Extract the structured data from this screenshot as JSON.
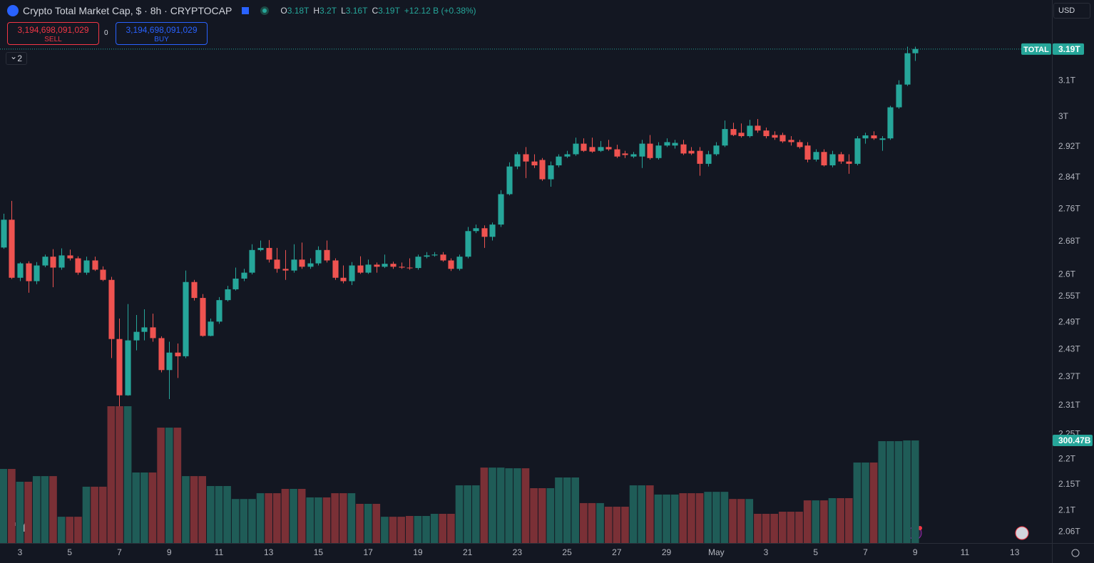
{
  "toolbar": {
    "symbol": "Crypto Total Market Cap, $ · 8h · CRYPTOCAP",
    "ohlc": [
      [
        "O",
        "3.18T"
      ],
      [
        "H",
        "3.2T"
      ],
      [
        "L",
        "3.16T"
      ],
      [
        "C",
        "3.19T"
      ]
    ],
    "change": "+12.12 B (+0.38%)",
    "sell_price": "3,194,698,091,029",
    "sell": "SELL",
    "spread": "0",
    "buy_price": "3,194,698,091,029",
    "buy": "BUY",
    "indicators": "2",
    "currency": "USD"
  },
  "chart_data": {
    "type": "candlestick",
    "log_scale": true,
    "grid": false,
    "colors": {
      "up": "#26a69a",
      "down": "#ef5350"
    },
    "ylim": [
      2.039,
      3.335
    ],
    "yticks": [
      {
        "value": 3.1,
        "label": "3.1T"
      },
      {
        "value": 3,
        "label": "3T"
      },
      {
        "value": 2.92,
        "label": "2.92T"
      },
      {
        "value": 2.84,
        "label": "2.84T"
      },
      {
        "value": 2.76,
        "label": "2.76T"
      },
      {
        "value": 2.68,
        "label": "2.68T"
      },
      {
        "value": 2.6,
        "label": "2.6T"
      },
      {
        "value": 2.55,
        "label": "2.55T"
      },
      {
        "value": 2.49,
        "label": "2.49T"
      },
      {
        "value": 2.43,
        "label": "2.43T"
      },
      {
        "value": 2.37,
        "label": "2.37T"
      },
      {
        "value": 2.31,
        "label": "2.31T"
      },
      {
        "value": 2.25,
        "label": "2.25T"
      },
      {
        "value": 2.2,
        "label": "2.2T"
      },
      {
        "value": 2.15,
        "label": "2.15T"
      },
      {
        "value": 2.1,
        "label": "2.1T"
      },
      {
        "value": 2.06,
        "label": "2.06T"
      }
    ],
    "xlim": [
      -0.41,
      126.5
    ],
    "xticks": [
      {
        "value": 2,
        "label": "3"
      },
      {
        "value": 8,
        "label": "5"
      },
      {
        "value": 14,
        "label": "7"
      },
      {
        "value": 20,
        "label": "9"
      },
      {
        "value": 26,
        "label": "11"
      },
      {
        "value": 32,
        "label": "13"
      },
      {
        "value": 38,
        "label": "15"
      },
      {
        "value": 44,
        "label": "17"
      },
      {
        "value": 50,
        "label": "19"
      },
      {
        "value": 56,
        "label": "21"
      },
      {
        "value": 62,
        "label": "23"
      },
      {
        "value": 68,
        "label": "25"
      },
      {
        "value": 74,
        "label": "27"
      },
      {
        "value": 80,
        "label": "29"
      },
      {
        "value": 86,
        "label": "May"
      },
      {
        "value": 92,
        "label": "3"
      },
      {
        "value": 98,
        "label": "5"
      },
      {
        "value": 104,
        "label": "7"
      },
      {
        "value": 110,
        "label": "9"
      },
      {
        "value": 116,
        "label": "11"
      },
      {
        "value": 122,
        "label": "13"
      }
    ],
    "open": [
      2.665,
      2.733,
      2.593,
      2.627,
      2.585,
      2.622,
      2.643,
      2.617,
      2.646,
      2.639,
      2.605,
      2.634,
      2.612,
      2.588,
      2.453,
      2.331,
      2.45,
      2.469,
      2.479,
      2.455,
      2.385,
      2.423,
      2.415,
      2.583,
      2.546,
      2.46,
      2.492,
      2.541,
      2.566,
      2.591,
      2.605,
      2.659,
      2.664,
      2.636,
      2.614,
      2.61,
      2.636,
      2.619,
      2.627,
      2.659,
      2.634,
      2.593,
      2.585,
      2.622,
      2.605,
      2.624,
      2.619,
      2.626,
      2.619,
      2.617,
      2.616,
      2.643,
      2.646,
      2.648,
      2.634,
      2.614,
      2.643,
      2.705,
      2.712,
      2.691,
      2.721,
      2.797,
      2.868,
      2.9,
      2.881,
      2.885,
      2.835,
      2.871,
      2.894,
      2.9,
      2.928,
      2.919,
      2.909,
      2.919,
      2.913,
      2.902,
      2.894,
      2.894,
      2.928,
      2.89,
      2.923,
      2.923,
      2.926,
      2.909,
      2.909,
      2.875,
      2.9,
      2.923,
      2.967,
      2.957,
      2.948,
      2.976,
      2.963,
      2.951,
      2.951,
      2.938,
      2.932,
      2.923,
      2.886,
      2.906,
      2.871,
      2.9,
      2.881,
      2.875,
      2.942,
      2.95,
      2.938,
      2.942,
      3.026,
      3.089,
      3.178
    ],
    "high": [
      2.748,
      2.78,
      2.63,
      2.632,
      2.63,
      2.648,
      2.661,
      2.663,
      2.66,
      2.644,
      2.643,
      2.643,
      2.62,
      2.595,
      2.499,
      2.532,
      2.507,
      2.52,
      2.51,
      2.459,
      2.447,
      2.443,
      2.61,
      2.588,
      2.555,
      2.499,
      2.548,
      2.574,
      2.617,
      2.614,
      2.673,
      2.682,
      2.683,
      2.664,
      2.659,
      2.673,
      2.677,
      2.639,
      2.668,
      2.682,
      2.639,
      2.622,
      2.63,
      2.644,
      2.636,
      2.629,
      2.648,
      2.631,
      2.629,
      2.639,
      2.648,
      2.654,
      2.654,
      2.654,
      2.639,
      2.648,
      2.715,
      2.721,
      2.719,
      2.726,
      2.807,
      2.879,
      2.906,
      2.919,
      2.9,
      2.89,
      2.881,
      2.9,
      2.909,
      2.944,
      2.942,
      2.944,
      2.935,
      2.938,
      2.925,
      2.909,
      2.906,
      2.938,
      2.951,
      2.932,
      2.942,
      2.938,
      2.938,
      2.919,
      2.919,
      2.909,
      2.932,
      2.99,
      2.984,
      2.982,
      2.992,
      2.994,
      2.971,
      2.961,
      2.957,
      2.948,
      2.938,
      2.932,
      2.913,
      2.913,
      2.909,
      2.906,
      2.9,
      2.948,
      2.957,
      2.961,
      2.948,
      3.03,
      3.101,
      3.197,
      3.197
    ],
    "low": [
      2.662,
      2.59,
      2.585,
      2.558,
      2.578,
      2.618,
      2.571,
      2.612,
      2.634,
      2.6,
      2.6,
      2.609,
      2.585,
      2.411,
      2.308,
      2.33,
      2.428,
      2.45,
      2.447,
      2.38,
      2.323,
      2.368,
      2.411,
      2.54,
      2.458,
      2.459,
      2.487,
      2.538,
      2.563,
      2.585,
      2.601,
      2.656,
      2.629,
      2.605,
      2.588,
      2.605,
      2.614,
      2.614,
      2.622,
      2.629,
      2.588,
      2.58,
      2.576,
      2.602,
      2.602,
      2.605,
      2.616,
      2.614,
      2.614,
      2.612,
      2.612,
      2.639,
      2.643,
      2.631,
      2.609,
      2.61,
      2.639,
      2.7,
      2.664,
      2.682,
      2.715,
      2.794,
      2.861,
      2.838,
      2.864,
      2.831,
      2.816,
      2.866,
      2.89,
      2.896,
      2.906,
      2.904,
      2.906,
      2.909,
      2.89,
      2.89,
      2.89,
      2.864,
      2.886,
      2.886,
      2.919,
      2.915,
      2.898,
      2.898,
      2.844,
      2.868,
      2.896,
      2.919,
      2.948,
      2.944,
      2.944,
      2.957,
      2.942,
      2.938,
      2.93,
      2.923,
      2.915,
      2.879,
      2.881,
      2.868,
      2.866,
      2.875,
      2.849,
      2.871,
      2.928,
      2.938,
      2.909,
      2.938,
      3.022,
      3.085,
      3.156
    ],
    "close": [
      2.733,
      2.593,
      2.627,
      2.585,
      2.622,
      2.643,
      2.617,
      2.646,
      2.639,
      2.605,
      2.634,
      2.612,
      2.588,
      2.453,
      2.331,
      2.45,
      2.469,
      2.479,
      2.455,
      2.385,
      2.423,
      2.415,
      2.583,
      2.546,
      2.46,
      2.492,
      2.541,
      2.566,
      2.591,
      2.605,
      2.659,
      2.664,
      2.636,
      2.614,
      2.61,
      2.636,
      2.619,
      2.627,
      2.659,
      2.634,
      2.593,
      2.585,
      2.622,
      2.605,
      2.624,
      2.619,
      2.626,
      2.619,
      2.617,
      2.616,
      2.643,
      2.646,
      2.648,
      2.634,
      2.614,
      2.643,
      2.705,
      2.712,
      2.691,
      2.721,
      2.797,
      2.868,
      2.9,
      2.881,
      2.871,
      2.835,
      2.871,
      2.894,
      2.9,
      2.928,
      2.909,
      2.907,
      2.919,
      2.913,
      2.894,
      2.898,
      2.9,
      2.928,
      2.89,
      2.923,
      2.932,
      2.93,
      2.902,
      2.902,
      2.875,
      2.9,
      2.923,
      2.967,
      2.951,
      2.948,
      2.976,
      2.963,
      2.948,
      2.944,
      2.934,
      2.932,
      2.919,
      2.886,
      2.906,
      2.871,
      2.9,
      2.881,
      2.875,
      2.942,
      2.95,
      2.942,
      2.942,
      3.026,
      3.089,
      3.178,
      3.19
    ],
    "last_price": {
      "name": "TOTAL",
      "value_label": "3.19T"
    },
    "volume": {
      "up_color": "#1f5c57",
      "down_color": "#7a3036",
      "value_label": "300.47B",
      "values": [
        217,
        217,
        179.5,
        179.5,
        196,
        196,
        196,
        77,
        77,
        77,
        165,
        165,
        165,
        400.7,
        400.7,
        400.7,
        206.6,
        206.6,
        206.6,
        338,
        338,
        338,
        196,
        196,
        196,
        167,
        167,
        167,
        129,
        129,
        129,
        146,
        146,
        146,
        158.6,
        158.6,
        158.6,
        133.6,
        133.6,
        133.6,
        146,
        146,
        146,
        114.8,
        114.8,
        114.8,
        77,
        77,
        77,
        79.3,
        79.3,
        79.3,
        85.6,
        85.6,
        85.6,
        169,
        169,
        169,
        221,
        221,
        221,
        219,
        219,
        219,
        160.7,
        160.7,
        160.7,
        192,
        192,
        192,
        117,
        117,
        117,
        106.4,
        106.4,
        106.4,
        169,
        169,
        169,
        142,
        142,
        142,
        146,
        146,
        146,
        150,
        150,
        150,
        129,
        129,
        129,
        85.6,
        85.6,
        85.6,
        91.8,
        91.8,
        91.8,
        125,
        125,
        125,
        131.5,
        131.5,
        131.5,
        235.8,
        235.8,
        235.8,
        298.4,
        298.4,
        298.4,
        300.47,
        300.47
      ]
    }
  }
}
